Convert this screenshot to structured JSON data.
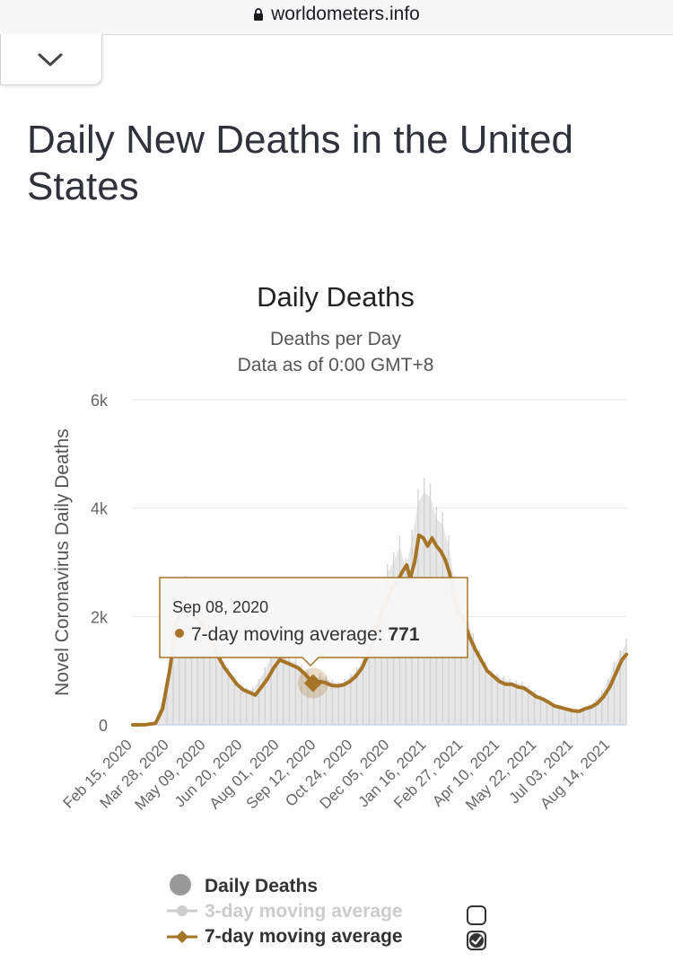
{
  "browser": {
    "url": "worldometers.info"
  },
  "page": {
    "title": "Daily New Deaths in the United States"
  },
  "chart_data": {
    "type": "line",
    "title": "Daily Deaths",
    "subtitle": "Deaths per Day",
    "subtitle2": "Data as of 0:00 GMT+8",
    "ylabel": "Novel Coronavirus Daily Deaths",
    "xlabel": "",
    "ylim": [
      0,
      6000
    ],
    "y_ticks": [
      0,
      2000,
      4000,
      6000
    ],
    "y_tick_labels": [
      "0",
      "2k",
      "4k",
      "6k"
    ],
    "x_range": [
      "2020-02-15",
      "2021-09-01"
    ],
    "x_tick_labels": [
      "Feb 15, 2020",
      "Mar 28, 2020",
      "May 09, 2020",
      "Jun 20, 2020",
      "Aug 01, 2020",
      "Sep 12, 2020",
      "Oct 24, 2020",
      "Dec 05, 2020",
      "Jan 16, 2021",
      "Feb 27, 2021",
      "Apr 10, 2021",
      "May 22, 2021",
      "Jul 03, 2021",
      "Aug 14, 2021"
    ],
    "x_tick_dates": [
      "2020-02-15",
      "2020-03-28",
      "2020-05-09",
      "2020-06-20",
      "2020-08-01",
      "2020-09-12",
      "2020-10-24",
      "2020-12-05",
      "2021-01-16",
      "2021-02-27",
      "2021-04-10",
      "2021-05-22",
      "2021-07-03",
      "2021-08-14"
    ],
    "grid": true,
    "legend_position": "bottom",
    "series": [
      {
        "name": "Daily Deaths",
        "type": "bar",
        "color": "#e6e6e6",
        "values": [
          [
            "2020-03-10",
            20
          ],
          [
            "2020-03-25",
            700
          ],
          [
            "2020-04-01",
            1500
          ],
          [
            "2020-04-08",
            2400
          ],
          [
            "2020-04-15",
            2600
          ],
          [
            "2020-04-22",
            2300
          ],
          [
            "2020-04-29",
            2200
          ],
          [
            "2020-05-06",
            2100
          ],
          [
            "2020-05-13",
            1700
          ],
          [
            "2020-05-20",
            1400
          ],
          [
            "2020-05-27",
            1100
          ],
          [
            "2020-06-03",
            1000
          ],
          [
            "2020-06-10",
            850
          ],
          [
            "2020-06-17",
            700
          ],
          [
            "2020-06-24",
            650
          ],
          [
            "2020-07-01",
            650
          ],
          [
            "2020-07-08",
            800
          ],
          [
            "2020-07-15",
            1000
          ],
          [
            "2020-07-22",
            1250
          ],
          [
            "2020-07-29",
            1400
          ],
          [
            "2020-08-05",
            1250
          ],
          [
            "2020-08-12",
            1200
          ],
          [
            "2020-08-19",
            1150
          ],
          [
            "2020-08-26",
            1050
          ],
          [
            "2020-09-02",
            950
          ],
          [
            "2020-09-09",
            800
          ],
          [
            "2020-09-16",
            900
          ],
          [
            "2020-09-23",
            850
          ],
          [
            "2020-09-30",
            800
          ],
          [
            "2020-10-07",
            750
          ],
          [
            "2020-10-14",
            800
          ],
          [
            "2020-10-21",
            900
          ],
          [
            "2020-10-28",
            1000
          ],
          [
            "2020-11-04",
            1200
          ],
          [
            "2020-11-11",
            1500
          ],
          [
            "2020-11-18",
            1900
          ],
          [
            "2020-11-25",
            2300
          ],
          [
            "2020-12-02",
            2800
          ],
          [
            "2020-12-09",
            3000
          ],
          [
            "2020-12-16",
            3300
          ],
          [
            "2020-12-23",
            2900
          ],
          [
            "2020-12-30",
            3400
          ],
          [
            "2021-01-06",
            4100
          ],
          [
            "2021-01-13",
            4300
          ],
          [
            "2021-01-20",
            4200
          ],
          [
            "2021-01-27",
            3800
          ],
          [
            "2021-02-03",
            3700
          ],
          [
            "2021-02-10",
            3300
          ],
          [
            "2021-02-17",
            2600
          ],
          [
            "2021-02-24",
            2300
          ],
          [
            "2021-03-03",
            2000
          ],
          [
            "2021-03-10",
            1600
          ],
          [
            "2021-03-17",
            1300
          ],
          [
            "2021-03-24",
            1100
          ],
          [
            "2021-03-31",
            950
          ],
          [
            "2021-04-07",
            900
          ],
          [
            "2021-04-14",
            850
          ],
          [
            "2021-04-21",
            800
          ],
          [
            "2021-04-28",
            780
          ],
          [
            "2021-05-05",
            750
          ],
          [
            "2021-05-12",
            680
          ],
          [
            "2021-05-19",
            600
          ],
          [
            "2021-05-26",
            520
          ],
          [
            "2021-06-02",
            430
          ],
          [
            "2021-06-09",
            380
          ],
          [
            "2021-06-16",
            340
          ],
          [
            "2021-06-23",
            300
          ],
          [
            "2021-06-30",
            280
          ],
          [
            "2021-07-07",
            260
          ],
          [
            "2021-07-14",
            300
          ],
          [
            "2021-07-21",
            360
          ],
          [
            "2021-07-28",
            450
          ],
          [
            "2021-08-04",
            600
          ],
          [
            "2021-08-11",
            800
          ],
          [
            "2021-08-18",
            1100
          ],
          [
            "2021-08-25",
            1300
          ],
          [
            "2021-09-01",
            1500
          ]
        ]
      },
      {
        "name": "3-day moving average",
        "type": "line",
        "color": "#cccccc",
        "visible": false,
        "checked": false
      },
      {
        "name": "7-day moving average",
        "type": "line",
        "color": "#a67426",
        "visible": true,
        "checked": true,
        "values": [
          [
            "2020-02-15",
            0
          ],
          [
            "2020-03-01",
            5
          ],
          [
            "2020-03-12",
            30
          ],
          [
            "2020-03-20",
            300
          ],
          [
            "2020-03-28",
            1000
          ],
          [
            "2020-04-05",
            1900
          ],
          [
            "2020-04-12",
            2150
          ],
          [
            "2020-04-18",
            2200
          ],
          [
            "2020-04-25",
            2000
          ],
          [
            "2020-05-02",
            1900
          ],
          [
            "2020-05-09",
            1750
          ],
          [
            "2020-05-16",
            1500
          ],
          [
            "2020-05-23",
            1250
          ],
          [
            "2020-05-30",
            1050
          ],
          [
            "2020-06-06",
            900
          ],
          [
            "2020-06-13",
            750
          ],
          [
            "2020-06-20",
            650
          ],
          [
            "2020-06-27",
            600
          ],
          [
            "2020-07-04",
            550
          ],
          [
            "2020-07-11",
            700
          ],
          [
            "2020-07-18",
            850
          ],
          [
            "2020-07-25",
            1050
          ],
          [
            "2020-08-01",
            1200
          ],
          [
            "2020-08-08",
            1150
          ],
          [
            "2020-08-15",
            1100
          ],
          [
            "2020-08-22",
            1050
          ],
          [
            "2020-08-29",
            950
          ],
          [
            "2020-09-08",
            771
          ],
          [
            "2020-09-15",
            800
          ],
          [
            "2020-09-22",
            780
          ],
          [
            "2020-09-29",
            730
          ],
          [
            "2020-10-06",
            720
          ],
          [
            "2020-10-13",
            740
          ],
          [
            "2020-10-20",
            800
          ],
          [
            "2020-10-27",
            900
          ],
          [
            "2020-11-03",
            1050
          ],
          [
            "2020-11-10",
            1300
          ],
          [
            "2020-11-17",
            1600
          ],
          [
            "2020-11-24",
            2000
          ],
          [
            "2020-12-01",
            2300
          ],
          [
            "2020-12-08",
            2550
          ],
          [
            "2020-12-15",
            2700
          ],
          [
            "2020-12-20",
            2850
          ],
          [
            "2020-12-24",
            2950
          ],
          [
            "2020-12-28",
            2700
          ],
          [
            "2021-01-02",
            3000
          ],
          [
            "2021-01-07",
            3500
          ],
          [
            "2021-01-12",
            3450
          ],
          [
            "2021-01-17",
            3300
          ],
          [
            "2021-01-22",
            3450
          ],
          [
            "2021-01-27",
            3300
          ],
          [
            "2021-02-01",
            3200
          ],
          [
            "2021-02-06",
            3050
          ],
          [
            "2021-02-11",
            2800
          ],
          [
            "2021-02-16",
            2400
          ],
          [
            "2021-02-21",
            2050
          ],
          [
            "2021-02-26",
            2000
          ],
          [
            "2021-03-05",
            1650
          ],
          [
            "2021-03-12",
            1400
          ],
          [
            "2021-03-19",
            1200
          ],
          [
            "2021-03-26",
            1000
          ],
          [
            "2021-04-02",
            900
          ],
          [
            "2021-04-09",
            800
          ],
          [
            "2021-04-16",
            750
          ],
          [
            "2021-04-23",
            750
          ],
          [
            "2021-04-30",
            700
          ],
          [
            "2021-05-07",
            680
          ],
          [
            "2021-05-14",
            600
          ],
          [
            "2021-05-21",
            520
          ],
          [
            "2021-05-28",
            480
          ],
          [
            "2021-06-04",
            420
          ],
          [
            "2021-06-11",
            350
          ],
          [
            "2021-06-18",
            320
          ],
          [
            "2021-06-25",
            290
          ],
          [
            "2021-07-02",
            260
          ],
          [
            "2021-07-09",
            250
          ],
          [
            "2021-07-16",
            300
          ],
          [
            "2021-07-23",
            330
          ],
          [
            "2021-07-30",
            400
          ],
          [
            "2021-08-06",
            520
          ],
          [
            "2021-08-13",
            700
          ],
          [
            "2021-08-20",
            950
          ],
          [
            "2021-08-27",
            1200
          ],
          [
            "2021-09-01",
            1300
          ]
        ]
      }
    ],
    "tooltip": {
      "date": "Sep 08, 2020",
      "series_label": "7-day moving average:",
      "value": "771"
    }
  }
}
